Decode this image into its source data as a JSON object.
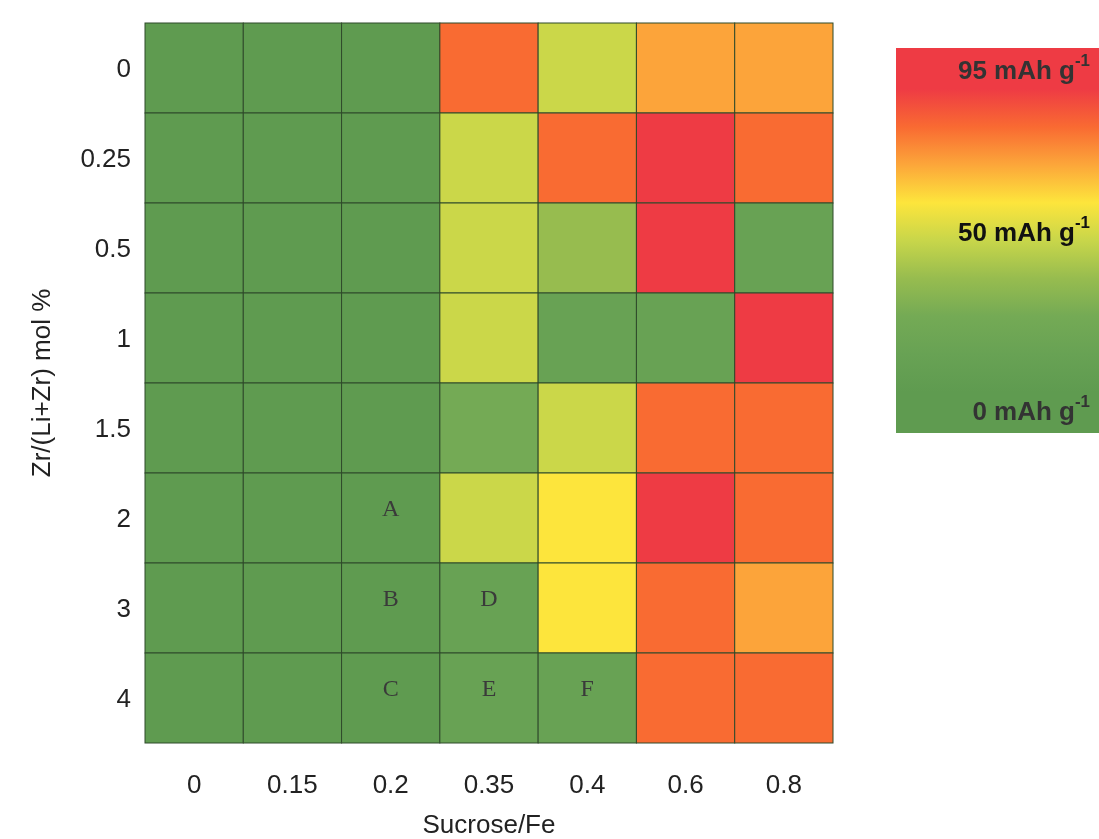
{
  "chart_data": {
    "type": "heatmap",
    "xlabel": "Sucrose/Fe",
    "ylabel": "Zr/(Li+Zr) mol %",
    "categories": [
      "0",
      "0.15",
      "0.2",
      "0.35",
      "0.4",
      "0.6",
      "0.8"
    ],
    "y_categories": [
      "0",
      "0.25",
      "0.5",
      "1",
      "1.5",
      "2",
      "3",
      "4"
    ],
    "cells": [
      [
        5,
        5,
        5,
        79,
        48,
        69,
        69
      ],
      [
        5,
        5,
        5,
        48,
        79,
        90,
        79
      ],
      [
        5,
        5,
        5,
        48,
        37,
        90,
        16
      ],
      [
        5,
        5,
        5,
        48,
        16,
        16,
        90
      ],
      [
        5,
        5,
        5,
        26,
        48,
        79,
        79
      ],
      [
        5,
        5,
        5,
        48,
        58,
        90,
        79
      ],
      [
        5,
        5,
        5,
        16,
        58,
        79,
        69
      ],
      [
        5,
        5,
        5,
        16,
        16,
        79,
        79
      ]
    ],
    "clim": [
      0,
      95
    ],
    "cticks": [
      {
        "value": 0,
        "label": "0 mAh g$^{-1}$"
      },
      {
        "value": 50,
        "label": "50 mAh g$^{-1}$"
      },
      {
        "value": 95,
        "label": "95 mAh g$^{-1}$"
      }
    ],
    "cell_labels": [
      [
        null,
        null,
        null,
        null,
        null,
        null,
        null
      ],
      [
        null,
        null,
        null,
        null,
        null,
        null,
        null
      ],
      [
        null,
        null,
        null,
        null,
        null,
        null,
        null
      ],
      [
        null,
        null,
        null,
        null,
        null,
        null,
        null
      ],
      [
        null,
        null,
        null,
        null,
        null,
        null,
        null
      ],
      [
        null,
        null,
        "A",
        null,
        null,
        null,
        null
      ],
      [
        null,
        null,
        "B",
        "D",
        null,
        null,
        null
      ],
      [
        null,
        null,
        "C",
        "E",
        "F",
        null,
        null
      ]
    ]
  }
}
